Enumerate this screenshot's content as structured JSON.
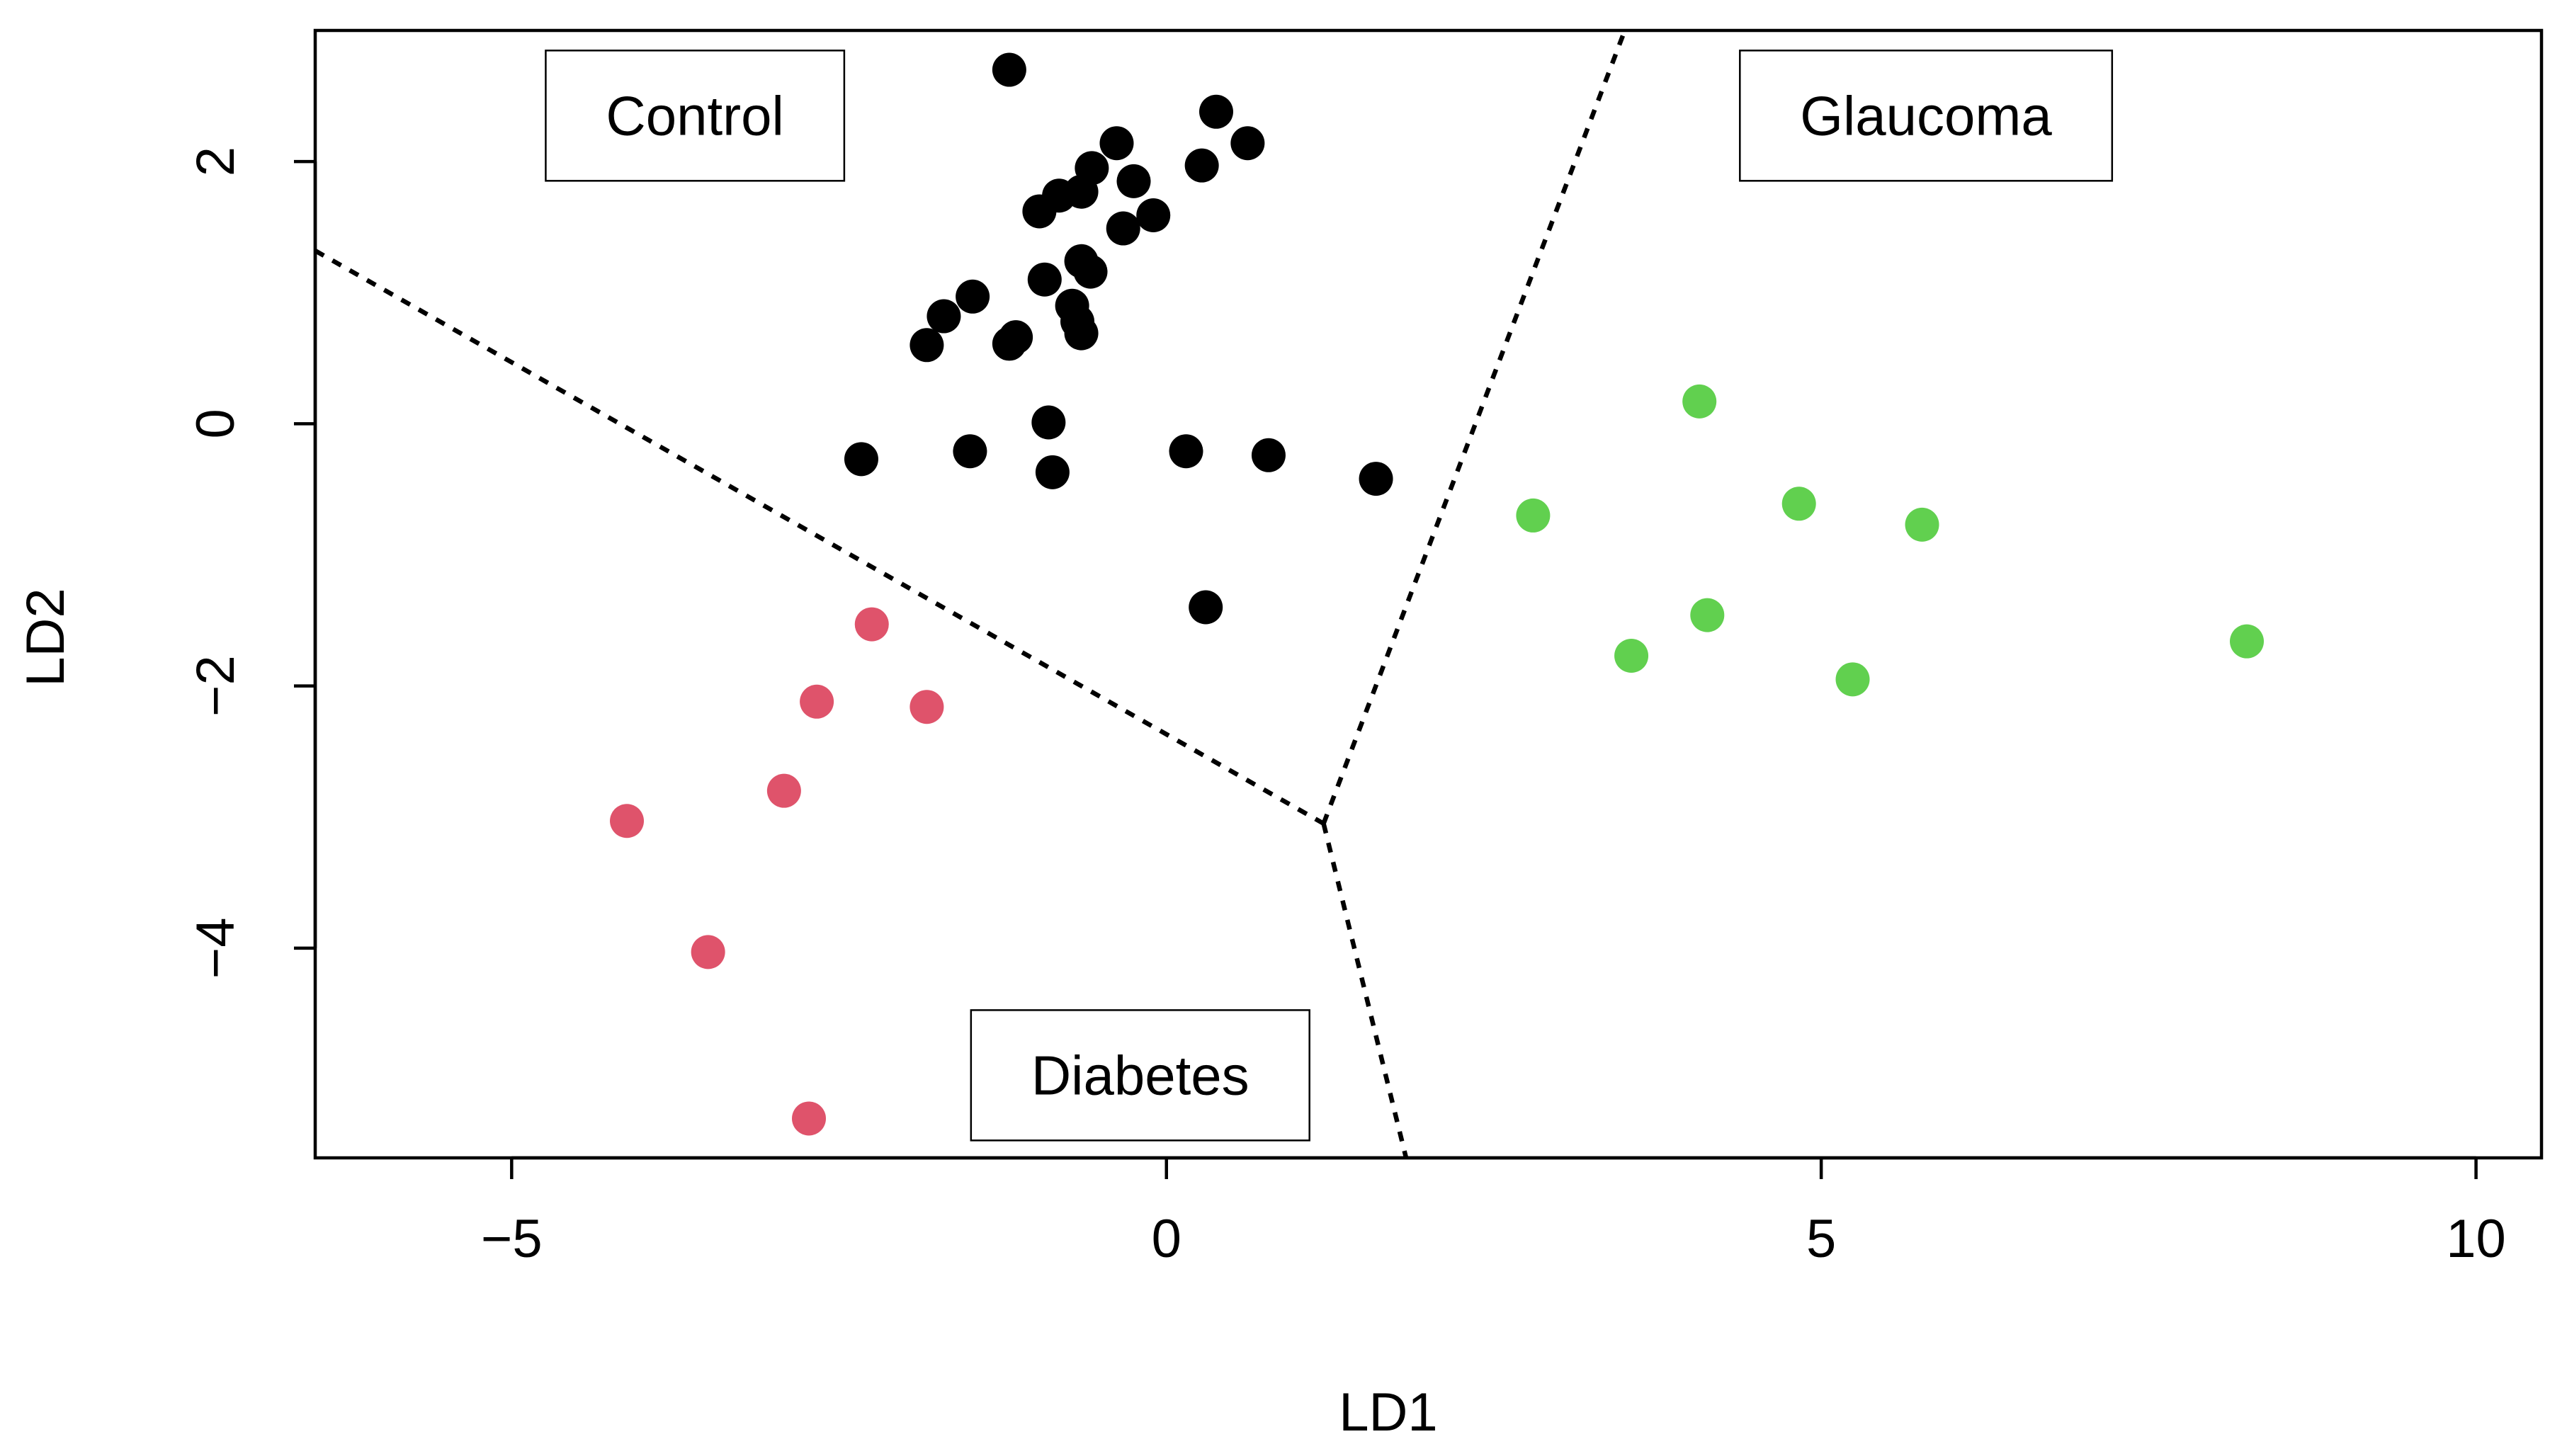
{
  "chart_data": {
    "type": "scatter",
    "title": "",
    "xlabel": "LD1",
    "ylabel": "LD2",
    "xlim": [
      -6.5,
      10.5
    ],
    "ylim": [
      -5.6,
      3.0
    ],
    "x_ticks": [
      -5,
      0,
      5,
      10
    ],
    "x_tick_labels": [
      "−5",
      "0",
      "5",
      "10"
    ],
    "y_ticks": [
      -4,
      -2,
      0,
      2
    ],
    "y_tick_labels": [
      "−4",
      "−2",
      "0",
      "2"
    ],
    "grid": false,
    "legend": null,
    "region_labels": [
      {
        "text": "Control",
        "x": -3.6,
        "y": 2.35
      },
      {
        "text": "Glaucoma",
        "x": 5.8,
        "y": 2.35
      },
      {
        "text": "Diabetes",
        "x": -0.2,
        "y": -4.97
      }
    ],
    "decision_boundaries": [
      {
        "name": "control-diabetes",
        "points": [
          [
            -6.5,
            1.32
          ],
          [
            1.2,
            -3.05
          ]
        ]
      },
      {
        "name": "control-glaucoma",
        "points": [
          [
            1.2,
            -3.05
          ],
          [
            3.5,
            3.0
          ]
        ]
      },
      {
        "name": "diabetes-glaucoma",
        "points": [
          [
            1.2,
            -3.05
          ],
          [
            1.83,
            -5.6
          ]
        ]
      }
    ],
    "series": [
      {
        "name": "Control",
        "color": "#000000",
        "points": [
          [
            -1.2,
            2.7
          ],
          [
            0.38,
            2.38
          ],
          [
            0.62,
            2.14
          ],
          [
            -0.38,
            2.14
          ],
          [
            -0.57,
            1.95
          ],
          [
            0.27,
            1.97
          ],
          [
            -0.25,
            1.85
          ],
          [
            -0.65,
            1.77
          ],
          [
            -0.82,
            1.74
          ],
          [
            -0.97,
            1.62
          ],
          [
            -0.1,
            1.59
          ],
          [
            -0.33,
            1.49
          ],
          [
            -0.65,
            1.24
          ],
          [
            -0.58,
            1.16
          ],
          [
            -0.93,
            1.1
          ],
          [
            -0.72,
            0.9
          ],
          [
            -0.68,
            0.78
          ],
          [
            -1.48,
            0.97
          ],
          [
            -1.7,
            0.82
          ],
          [
            -1.15,
            0.66
          ],
          [
            -1.2,
            0.61
          ],
          [
            -1.83,
            0.6
          ],
          [
            -0.65,
            0.69
          ],
          [
            -0.9,
            0.01
          ],
          [
            -2.33,
            -0.27
          ],
          [
            -1.5,
            -0.21
          ],
          [
            -0.87,
            -0.37
          ],
          [
            0.15,
            -0.21
          ],
          [
            0.78,
            -0.24
          ],
          [
            1.6,
            -0.42
          ],
          [
            0.3,
            -1.4
          ]
        ]
      },
      {
        "name": "Diabetes",
        "color": "#df536b",
        "points": [
          [
            -2.25,
            -1.53
          ],
          [
            -2.67,
            -2.12
          ],
          [
            -1.83,
            -2.16
          ],
          [
            -2.92,
            -2.8
          ],
          [
            -4.12,
            -3.03
          ],
          [
            -3.5,
            -4.03
          ],
          [
            -2.73,
            -5.3
          ]
        ]
      },
      {
        "name": "Glaucoma",
        "color": "#61d04f",
        "points": [
          [
            4.07,
            0.17
          ],
          [
            2.8,
            -0.7
          ],
          [
            4.83,
            -0.61
          ],
          [
            5.77,
            -0.77
          ],
          [
            4.13,
            -1.46
          ],
          [
            3.55,
            -1.77
          ],
          [
            5.24,
            -1.95
          ],
          [
            8.25,
            -1.66
          ]
        ]
      }
    ]
  }
}
